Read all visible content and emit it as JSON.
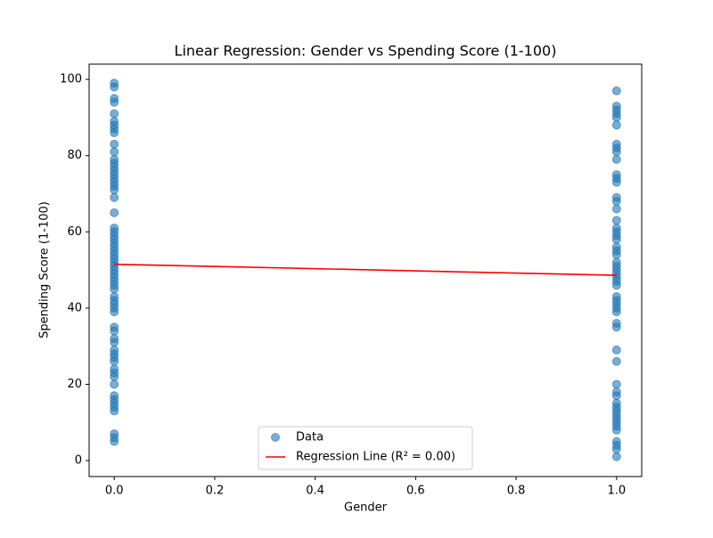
{
  "chart_data": {
    "type": "scatter",
    "title": "Linear Regression: Gender vs Spending Score (1-100)",
    "x_label": "Gender",
    "y_label": "Spending Score (1-100)",
    "xlim": [
      -0.05,
      1.05
    ],
    "xticks": [
      {
        "value": 0,
        "label": "0.0"
      },
      0.2,
      0.4,
      0.6,
      0.8,
      {
        "value": 1,
        "label": "1.0"
      }
    ],
    "ylim": [
      -4.2,
      104
    ],
    "yticks": [
      0,
      20,
      40,
      60,
      80,
      100
    ],
    "legend": "lower center",
    "series": [
      {
        "name": "Data",
        "type": "scatter",
        "color": "#1f77b4",
        "x": [
          0,
          0,
          0,
          0,
          0,
          0,
          0,
          0,
          0,
          0,
          0,
          0,
          0,
          0,
          0,
          0,
          0,
          0,
          0,
          0,
          0,
          0,
          0,
          0,
          0,
          0,
          0,
          0,
          0,
          0,
          0,
          0,
          0,
          0,
          0,
          0,
          0,
          0,
          0,
          0,
          0,
          0,
          0,
          0,
          0,
          0,
          0,
          0,
          0,
          0,
          0,
          0,
          0,
          0,
          0,
          0,
          0,
          0,
          0,
          0,
          0,
          0,
          0,
          0,
          1,
          1,
          1,
          1,
          1,
          1,
          1,
          1,
          1,
          1,
          1,
          1,
          1,
          1,
          1,
          1,
          1,
          1,
          1,
          1,
          1,
          1,
          1,
          1,
          1,
          1,
          1,
          1,
          1,
          1,
          1,
          1,
          1,
          1,
          1,
          1,
          1,
          1,
          1,
          1,
          1,
          1,
          1,
          1,
          1,
          1,
          1,
          1,
          1,
          1,
          1,
          1,
          1,
          1,
          1
        ],
        "values": [
          99,
          98,
          95,
          94,
          91,
          89,
          88,
          87,
          86,
          83,
          81,
          79,
          78,
          77,
          76,
          75,
          74,
          73,
          72,
          71,
          69,
          65,
          61,
          60,
          59,
          58,
          57,
          56,
          55,
          54,
          53,
          52,
          51,
          50,
          49,
          48,
          47,
          46,
          45,
          43,
          42,
          41,
          40,
          39,
          35,
          34,
          32,
          31,
          29,
          28,
          27,
          26,
          24,
          23,
          22,
          20,
          17,
          16,
          15,
          14,
          13,
          7,
          6,
          5,
          97,
          93,
          92,
          91,
          90,
          88,
          83,
          82,
          81,
          79,
          75,
          74,
          73,
          69,
          68,
          66,
          63,
          61,
          60,
          59,
          58,
          56,
          55,
          54,
          52,
          51,
          50,
          49,
          48,
          47,
          46,
          43,
          42,
          41,
          40,
          39,
          36,
          35,
          29,
          26,
          20,
          18,
          17,
          15,
          14,
          13,
          12,
          11,
          10,
          9,
          8,
          5,
          4,
          3,
          1
        ]
      },
      {
        "name": "Regression Line (R² = 0.00)",
        "type": "line",
        "color": "#ff0000",
        "x": [
          0,
          1
        ],
        "values": [
          51.5,
          48.6
        ]
      }
    ]
  }
}
